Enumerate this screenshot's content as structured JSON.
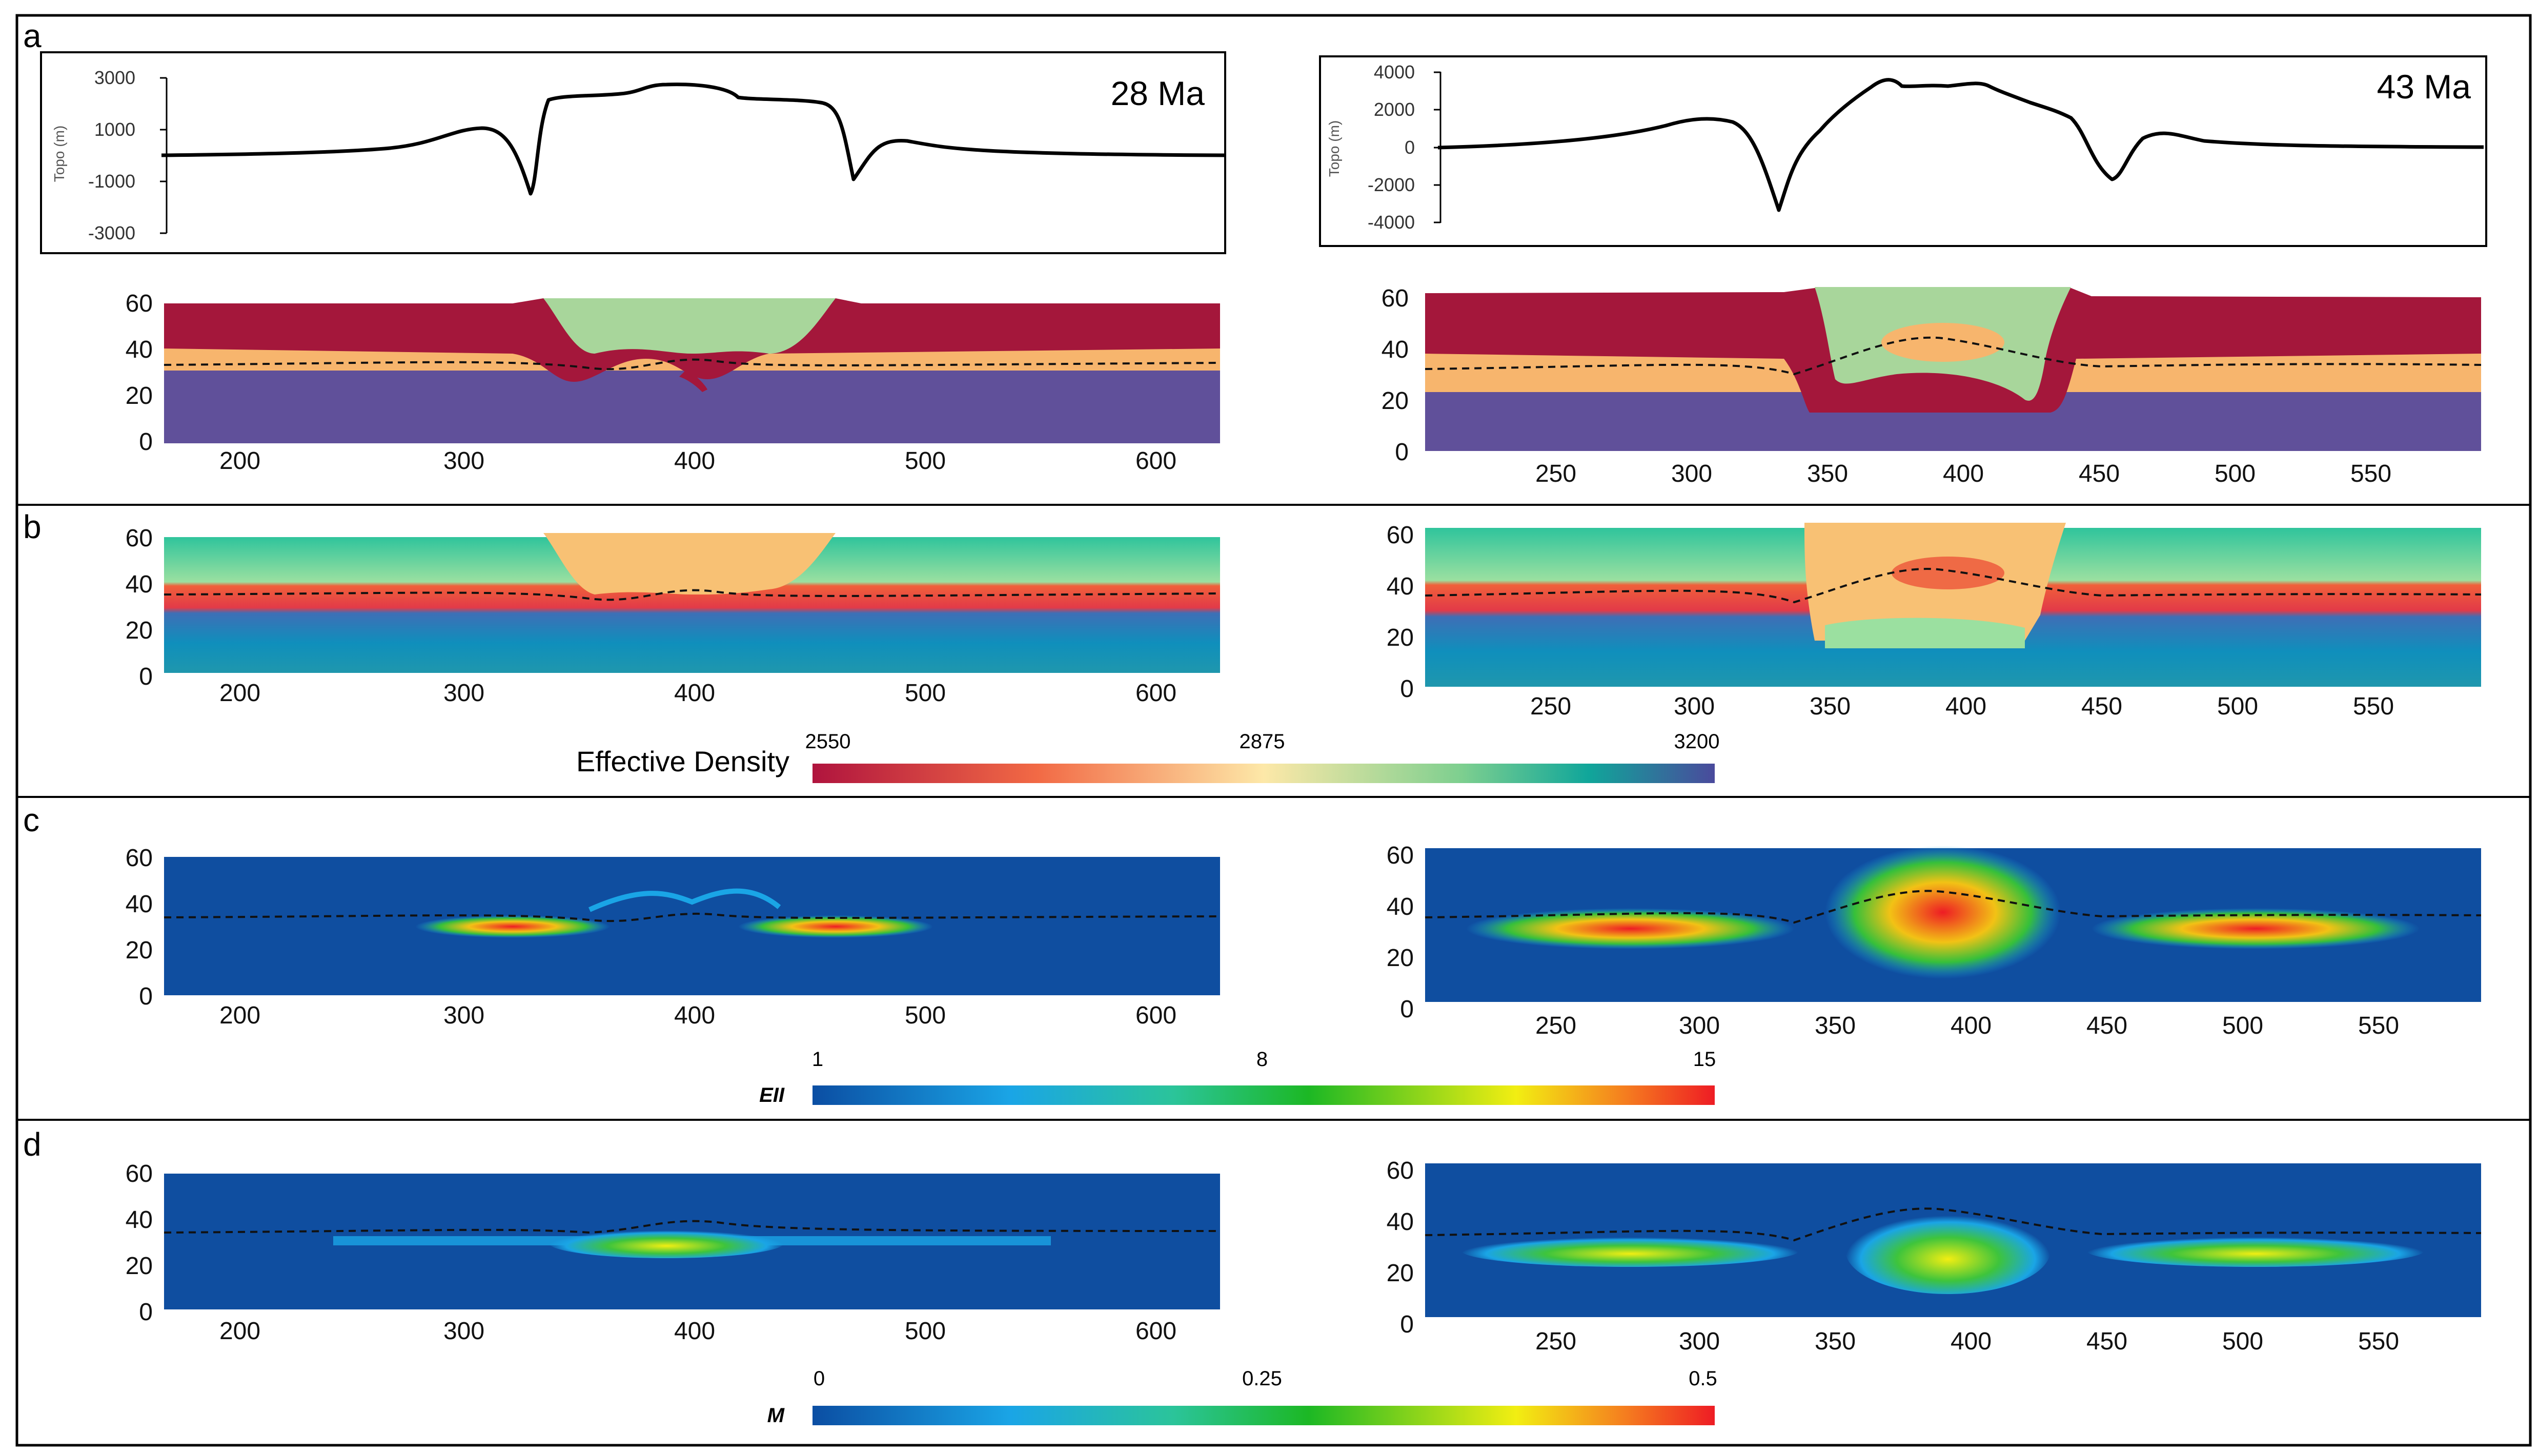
{
  "panel_labels": [
    "a",
    "b",
    "c",
    "d"
  ],
  "topo": [
    {
      "age_label": "28 Ma",
      "ylabel": "Topo (m)",
      "yticks": [
        "3000",
        "1000",
        "-1000",
        "-3000"
      ]
    },
    {
      "age_label": "43 Ma",
      "ylabel": "Topo (m)",
      "yticks": [
        "4000",
        "2000",
        "0",
        "-2000",
        "-4000"
      ]
    }
  ],
  "sections": {
    "left": {
      "depth_ticks": [
        "60",
        "40",
        "20",
        "0"
      ],
      "x_ticks": [
        "200",
        "300",
        "400",
        "500",
        "600"
      ]
    },
    "right": {
      "depth_ticks": [
        "60",
        "40",
        "20",
        "0"
      ],
      "x_ticks": [
        "250",
        "300",
        "350",
        "400",
        "450",
        "500",
        "550"
      ]
    }
  },
  "colorbars": {
    "density": {
      "title": "Effective Density",
      "labels": [
        "2550",
        "2875",
        "3200"
      ]
    },
    "strain": {
      "title": "EII",
      "labels": [
        "1",
        "8",
        "15"
      ]
    },
    "melt": {
      "title": "M",
      "labels": [
        "0",
        "0.25",
        "0.5"
      ]
    }
  },
  "colors": {
    "upper_crust": "#a4173b",
    "middle_crust": "#f7b56d",
    "lower_crust": "#60509a",
    "rift_fill": "#a8d69b",
    "strain_background": "#0f4ea0"
  }
}
